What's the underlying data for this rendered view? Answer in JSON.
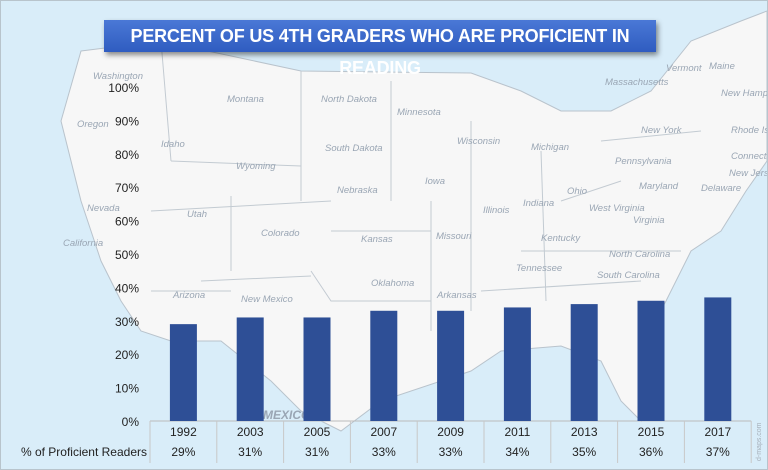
{
  "title": "PERCENT OF US 4TH GRADERS WHO ARE PROFICIENT IN READING",
  "colors": {
    "bar": "#2e4f96",
    "ocean": "#d9edf9",
    "land": "#f7f7f7",
    "title_bg": "#3a66cb"
  },
  "map": {
    "labels": [
      "Washington",
      "Oregon",
      "California",
      "Nevada",
      "Idaho",
      "Montana",
      "Wyoming",
      "Utah",
      "Arizona",
      "Colorado",
      "New Mexico",
      "North Dakota",
      "South Dakota",
      "Nebraska",
      "Kansas",
      "Oklahoma",
      "Minnesota",
      "Iowa",
      "Missouri",
      "Arkansas",
      "Wisconsin",
      "Illinois",
      "Michigan",
      "Indiana",
      "Ohio",
      "Kentucky",
      "Tennessee",
      "Pennsylvania",
      "West Virginia",
      "Virginia",
      "North Carolina",
      "South Carolina",
      "New York",
      "Vermont",
      "Maine",
      "Massachusetts",
      "New Hampshire",
      "Rhode Island",
      "Connecticut",
      "New Jersey",
      "Maryland",
      "Delaware",
      "MEXICO"
    ],
    "credit": "d-maps.com"
  },
  "chart_data": {
    "type": "bar",
    "title": "PERCENT OF US 4TH GRADERS WHO ARE PROFICIENT IN READING",
    "categories": [
      "1992",
      "2003",
      "2005",
      "2007",
      "2009",
      "2011",
      "2013",
      "2015",
      "2017"
    ],
    "series": [
      {
        "name": "% of Proficient Readers",
        "values": [
          29,
          31,
          31,
          33,
          33,
          34,
          35,
          36,
          37
        ]
      }
    ],
    "value_labels": [
      "29%",
      "31%",
      "31%",
      "33%",
      "33%",
      "34%",
      "35%",
      "36%",
      "37%"
    ],
    "ylim": [
      0,
      100
    ],
    "yticks": [
      "0%",
      "10%",
      "20%",
      "30%",
      "40%",
      "50%",
      "60%",
      "70%",
      "80%",
      "90%",
      "100%"
    ],
    "grid": false,
    "data_table": true
  }
}
